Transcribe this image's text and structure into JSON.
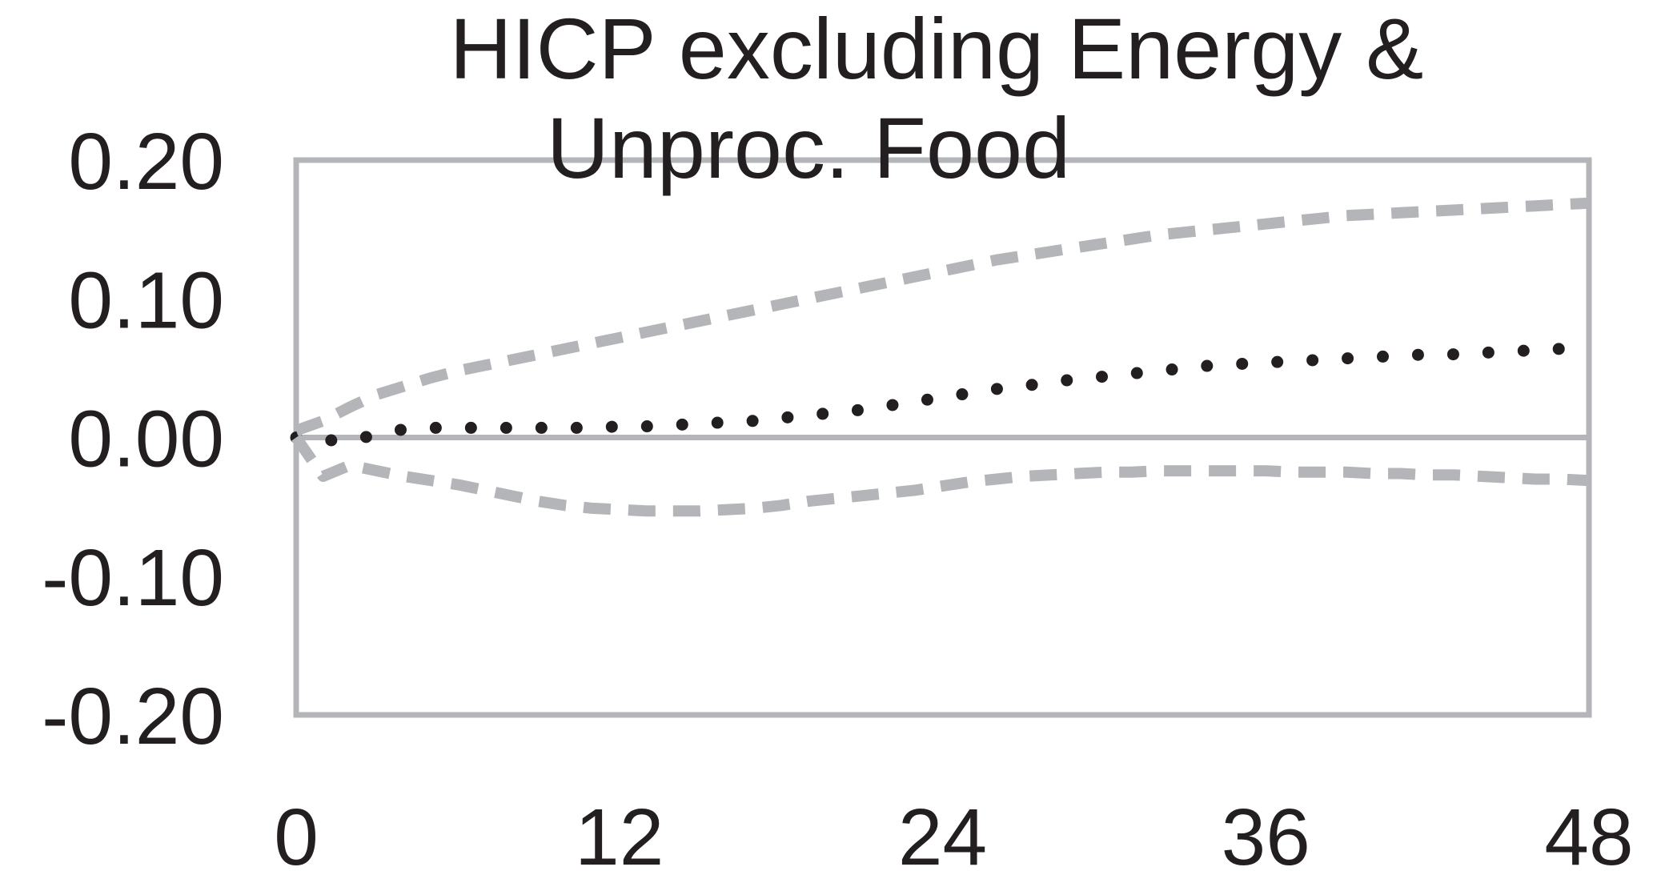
{
  "chart_data": {
    "type": "line",
    "title_lines": [
      "HICP excluding Energy &",
      "Unproc. Food"
    ],
    "xlabel": "",
    "ylabel": "",
    "xlim": [
      0,
      48
    ],
    "ylim": [
      -0.2,
      0.2
    ],
    "x_ticks": [
      0,
      12,
      24,
      36,
      48
    ],
    "x_tick_labels": [
      "0",
      "12",
      "24",
      "36",
      "48"
    ],
    "y_ticks": [
      0.2,
      0.1,
      0.0,
      -0.1,
      -0.2
    ],
    "y_tick_labels": [
      "0.20",
      "0.10",
      "0.00",
      "-0.10",
      "-0.20"
    ],
    "grid": false,
    "zero_line": true,
    "x": [
      0,
      1,
      2,
      3,
      4,
      5,
      6,
      7,
      8,
      9,
      10,
      11,
      12,
      13,
      14,
      15,
      16,
      17,
      18,
      19,
      20,
      21,
      22,
      23,
      24,
      25,
      26,
      27,
      28,
      29,
      30,
      31,
      32,
      33,
      34,
      35,
      36,
      37,
      38,
      39,
      40,
      41,
      42,
      43,
      44,
      45,
      46,
      47,
      48
    ],
    "series": [
      {
        "style": "dotted",
        "color": "#231f20",
        "values": [
          0.0,
          -0.002,
          -0.002,
          0.002,
          0.006,
          0.007,
          0.007,
          0.007,
          0.007,
          0.007,
          0.007,
          0.007,
          0.008,
          0.008,
          0.009,
          0.01,
          0.011,
          0.012,
          0.014,
          0.016,
          0.018,
          0.02,
          0.023,
          0.026,
          0.029,
          0.032,
          0.035,
          0.037,
          0.04,
          0.042,
          0.044,
          0.046,
          0.048,
          0.05,
          0.052,
          0.053,
          0.054,
          0.055,
          0.056,
          0.057,
          0.058,
          0.059,
          0.06,
          0.06,
          0.061,
          0.062,
          0.063,
          0.064,
          0.065
        ]
      },
      {
        "style": "dashed",
        "color": "#b3b5b8",
        "values": [
          0.005,
          0.012,
          0.022,
          0.031,
          0.037,
          0.043,
          0.048,
          0.052,
          0.056,
          0.06,
          0.064,
          0.068,
          0.072,
          0.076,
          0.08,
          0.084,
          0.088,
          0.092,
          0.096,
          0.1,
          0.104,
          0.108,
          0.112,
          0.116,
          0.12,
          0.124,
          0.128,
          0.131,
          0.134,
          0.137,
          0.14,
          0.143,
          0.146,
          0.148,
          0.15,
          0.152,
          0.154,
          0.156,
          0.158,
          0.16,
          0.161,
          0.162,
          0.163,
          0.164,
          0.165,
          0.166,
          0.167,
          0.168,
          0.169
        ]
      },
      {
        "style": "dashed",
        "color": "#b3b5b8",
        "values": [
          0.0,
          -0.028,
          -0.02,
          -0.024,
          -0.028,
          -0.031,
          -0.034,
          -0.038,
          -0.042,
          -0.046,
          -0.049,
          -0.051,
          -0.052,
          -0.053,
          -0.053,
          -0.053,
          -0.052,
          -0.051,
          -0.049,
          -0.046,
          -0.044,
          -0.042,
          -0.04,
          -0.038,
          -0.035,
          -0.032,
          -0.03,
          -0.028,
          -0.027,
          -0.026,
          -0.025,
          -0.025,
          -0.024,
          -0.024,
          -0.024,
          -0.024,
          -0.024,
          -0.025,
          -0.025,
          -0.025,
          -0.026,
          -0.026,
          -0.027,
          -0.027,
          -0.028,
          -0.029,
          -0.03,
          -0.03,
          -0.031
        ]
      }
    ]
  }
}
